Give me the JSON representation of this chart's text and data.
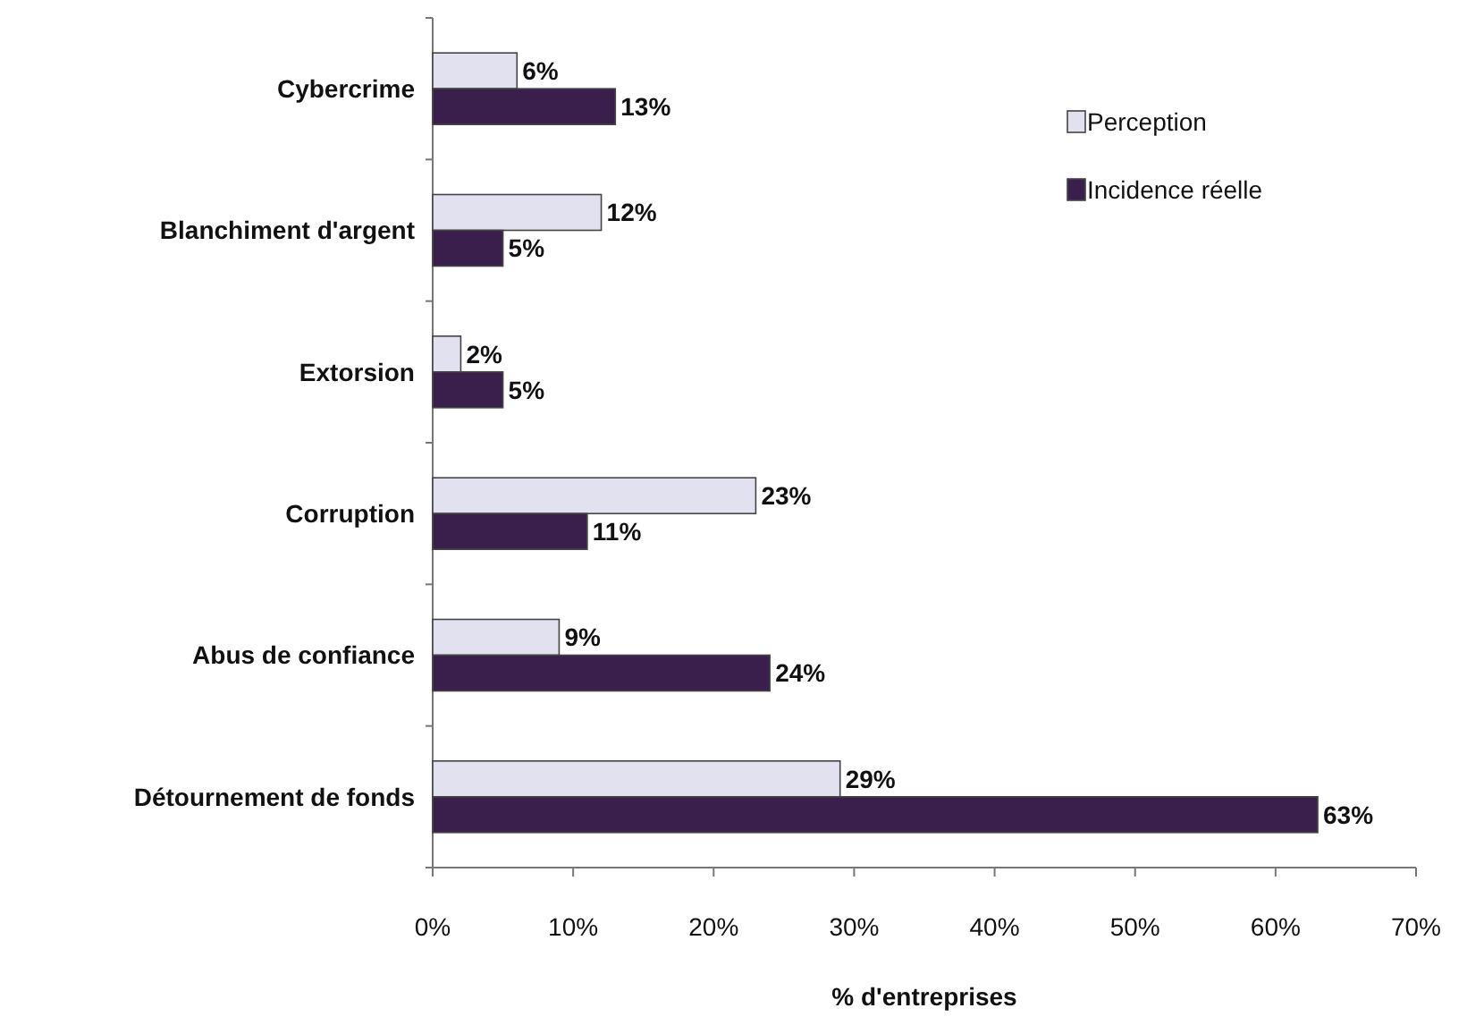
{
  "chart_data": {
    "type": "bar",
    "orientation": "horizontal",
    "xlabel": "% d'entreprises",
    "categories": [
      "Cybercrime",
      "Blanchiment d'argent",
      "Extorsion",
      "Corruption",
      "Abus de confiance",
      "Détournement de fonds"
    ],
    "series": [
      {
        "name": "Perception",
        "color": "#e2e1ef",
        "values": [
          6,
          12,
          2,
          23,
          9,
          29
        ],
        "value_labels": [
          "6%",
          "12%",
          "2%",
          "23%",
          "9%",
          "29%"
        ]
      },
      {
        "name": "Incidence réelle",
        "color": "#3a1f4c",
        "values": [
          13,
          5,
          5,
          11,
          24,
          63
        ],
        "value_labels": [
          "13%",
          "5%",
          "5%",
          "11%",
          "24%",
          "63%"
        ]
      }
    ],
    "xlim": [
      0,
      70
    ],
    "xticks": [
      {
        "value": 0,
        "label": "0%"
      },
      {
        "value": 10,
        "label": "10%"
      },
      {
        "value": 20,
        "label": "20%"
      },
      {
        "value": 30,
        "label": "30%"
      },
      {
        "value": 40,
        "label": "40%"
      },
      {
        "value": 50,
        "label": "50%"
      },
      {
        "value": 60,
        "label": "60%"
      },
      {
        "value": 70,
        "label": "70%"
      }
    ],
    "grid": false,
    "legend": "top right"
  }
}
